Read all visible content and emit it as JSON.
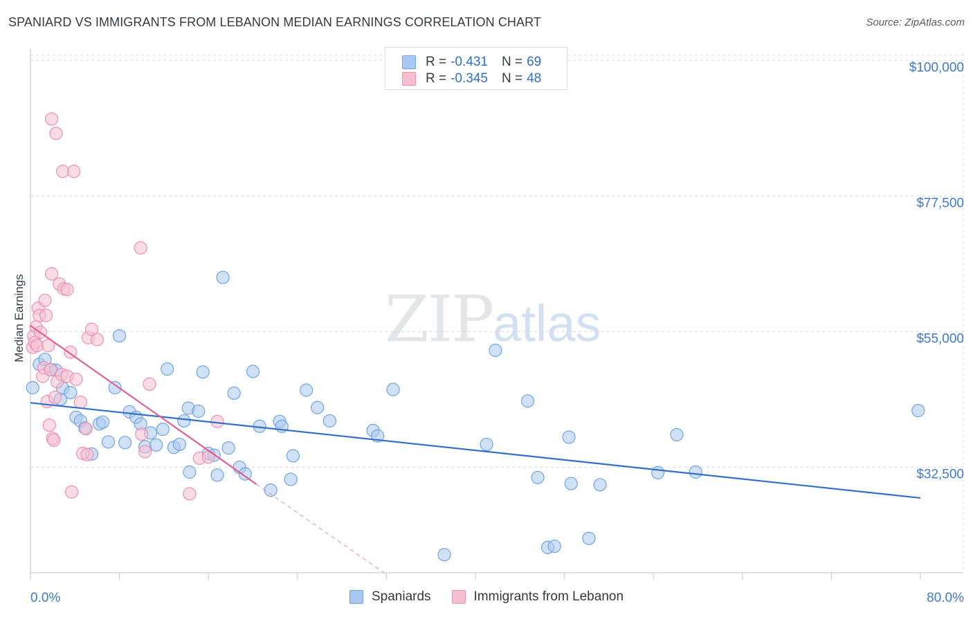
{
  "title": "SPANIARD VS IMMIGRANTS FROM LEBANON MEDIAN EARNINGS CORRELATION CHART",
  "source": "Source: ZipAtlas.com",
  "watermark": {
    "zip": "ZIP",
    "atlas": "atlas"
  },
  "legend": {
    "rows": [
      {
        "r_label": "R =",
        "r_value": "-0.431",
        "n_label": "N =",
        "n_value": "69",
        "color": "#6fa3e8"
      },
      {
        "r_label": "R =",
        "r_value": "-0.345",
        "n_label": "N =",
        "n_value": "48",
        "color": "#f08fb0"
      }
    ]
  },
  "colors": {
    "spaniards_fill": "#aac8ef",
    "spaniards_stroke": "#6fa3e8",
    "spaniards_line": "#2f6fc8",
    "lebanon_fill": "#f6bfd1",
    "lebanon_stroke": "#ee8fb0",
    "lebanon_line": "#e0608e",
    "tick_label": "#3d78cc",
    "grid": "#d9dce0"
  },
  "chart_data": {
    "type": "scatter",
    "xlabel": "",
    "ylabel": "Median Earnings",
    "xlim": [
      0,
      80
    ],
    "ylim": [
      15000,
      102000
    ],
    "x_tick_labels": [
      "0.0%",
      "80.0%"
    ],
    "y_ticks": [
      32500,
      55000,
      77500,
      100000
    ],
    "y_tick_labels": [
      "$32,500",
      "$55,000",
      "$77,500",
      "$100,000"
    ],
    "grid": true,
    "legend_position": "top-center",
    "series": [
      {
        "name": "Spaniards",
        "r": -0.431,
        "n": 69,
        "trend": {
          "x": [
            0,
            80
          ],
          "y": [
            43200,
            27400
          ]
        },
        "points": [
          [
            0.2,
            45700
          ],
          [
            0.8,
            49600
          ],
          [
            1.3,
            50400
          ],
          [
            1.9,
            48700
          ],
          [
            2.3,
            48600
          ],
          [
            2.7,
            43800
          ],
          [
            2.9,
            45600
          ],
          [
            3.6,
            44900
          ],
          [
            4.1,
            40800
          ],
          [
            4.5,
            40200
          ],
          [
            4.9,
            39000
          ],
          [
            5.5,
            34700
          ],
          [
            6.2,
            39700
          ],
          [
            6.5,
            40000
          ],
          [
            7.0,
            36700
          ],
          [
            7.6,
            45700
          ],
          [
            8.0,
            54300
          ],
          [
            8.5,
            36600
          ],
          [
            8.9,
            41700
          ],
          [
            9.5,
            40800
          ],
          [
            9.9,
            39700
          ],
          [
            10.3,
            35900
          ],
          [
            10.8,
            38200
          ],
          [
            11.3,
            36200
          ],
          [
            11.9,
            38800
          ],
          [
            12.3,
            48800
          ],
          [
            12.9,
            35800
          ],
          [
            13.4,
            36300
          ],
          [
            13.8,
            40200
          ],
          [
            14.2,
            42300
          ],
          [
            14.3,
            31700
          ],
          [
            15.1,
            41800
          ],
          [
            15.5,
            48300
          ],
          [
            16.0,
            34800
          ],
          [
            16.5,
            34500
          ],
          [
            16.8,
            31200
          ],
          [
            17.3,
            64000
          ],
          [
            17.8,
            35700
          ],
          [
            18.3,
            44800
          ],
          [
            18.8,
            32500
          ],
          [
            19.3,
            31400
          ],
          [
            20.0,
            48400
          ],
          [
            20.6,
            39300
          ],
          [
            21.6,
            28700
          ],
          [
            22.4,
            40100
          ],
          [
            22.6,
            39300
          ],
          [
            23.4,
            30500
          ],
          [
            23.6,
            34400
          ],
          [
            24.8,
            45300
          ],
          [
            25.8,
            42400
          ],
          [
            26.9,
            40200
          ],
          [
            30.8,
            38600
          ],
          [
            31.2,
            37700
          ],
          [
            32.6,
            45400
          ],
          [
            37.2,
            18000
          ],
          [
            41.0,
            36300
          ],
          [
            41.8,
            51900
          ],
          [
            44.7,
            43500
          ],
          [
            45.6,
            30800
          ],
          [
            46.5,
            19200
          ],
          [
            47.1,
            19400
          ],
          [
            48.4,
            37500
          ],
          [
            48.6,
            29800
          ],
          [
            50.2,
            20700
          ],
          [
            51.2,
            29600
          ],
          [
            56.4,
            31600
          ],
          [
            58.1,
            37900
          ],
          [
            59.8,
            31700
          ],
          [
            79.8,
            41900
          ]
        ]
      },
      {
        "name": "Immigrants from Lebanon",
        "r": -0.345,
        "n": 48,
        "trend": {
          "x": [
            0,
            20.3
          ],
          "y": [
            56000,
            29700
          ]
        },
        "trend_dashed": {
          "x": [
            20.3,
            34.9
          ],
          "y": [
            29700,
            11000
          ]
        },
        "points": [
          [
            0.2,
            52400
          ],
          [
            0.3,
            54300
          ],
          [
            0.4,
            53200
          ],
          [
            0.5,
            55800
          ],
          [
            0.6,
            52700
          ],
          [
            0.7,
            58900
          ],
          [
            0.8,
            57700
          ],
          [
            0.9,
            54900
          ],
          [
            1.1,
            47600
          ],
          [
            1.2,
            49000
          ],
          [
            1.3,
            60200
          ],
          [
            1.4,
            57700
          ],
          [
            1.5,
            43400
          ],
          [
            1.6,
            52700
          ],
          [
            1.7,
            39500
          ],
          [
            1.8,
            48700
          ],
          [
            1.9,
            64600
          ],
          [
            1.9,
            90300
          ],
          [
            2.0,
            37300
          ],
          [
            2.1,
            37000
          ],
          [
            2.2,
            44100
          ],
          [
            2.3,
            87900
          ],
          [
            2.4,
            46700
          ],
          [
            2.6,
            62900
          ],
          [
            2.8,
            47900
          ],
          [
            2.9,
            81600
          ],
          [
            3.0,
            62100
          ],
          [
            3.3,
            62000
          ],
          [
            3.3,
            47600
          ],
          [
            3.6,
            51600
          ],
          [
            3.7,
            28400
          ],
          [
            3.9,
            81600
          ],
          [
            4.1,
            47100
          ],
          [
            4.5,
            43300
          ],
          [
            4.7,
            34800
          ],
          [
            5.0,
            38900
          ],
          [
            5.1,
            34600
          ],
          [
            5.2,
            54000
          ],
          [
            5.5,
            55400
          ],
          [
            6.0,
            53700
          ],
          [
            9.9,
            68900
          ],
          [
            10.0,
            38000
          ],
          [
            10.3,
            35100
          ],
          [
            10.7,
            46300
          ],
          [
            14.3,
            28100
          ],
          [
            15.2,
            34000
          ],
          [
            16.0,
            34200
          ],
          [
            16.8,
            40100
          ]
        ]
      }
    ]
  }
}
